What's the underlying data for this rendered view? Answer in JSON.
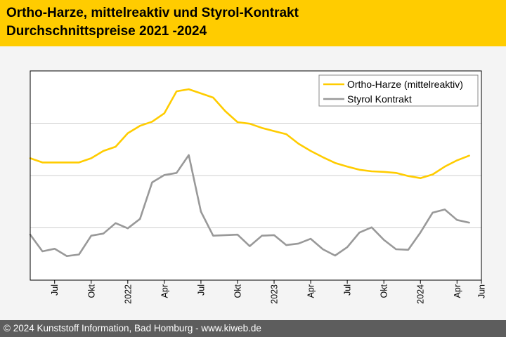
{
  "header": {
    "title": "Ortho-Harze, mittelreaktiv und Styrol-Kontrakt",
    "subtitle": "Durchschnittspreise 2021 -2024"
  },
  "footer": {
    "credit": "© 2024 Kunststoff Information, Bad Homburg - www.kiweb.de"
  },
  "chart_data": {
    "type": "line",
    "title": "Ortho-Harze, mittelreaktiv und Styrol-Kontrakt",
    "subtitle": "Durchschnittspreise 2021 -2024",
    "x_start": "2021-05",
    "x_end": "2024-06",
    "x_ticks": [
      {
        "date": "2021-07",
        "label": "Jul"
      },
      {
        "date": "2021-10",
        "label": "Okt"
      },
      {
        "date": "2022-01",
        "label": "2022"
      },
      {
        "date": "2022-04",
        "label": "Apr"
      },
      {
        "date": "2022-07",
        "label": "Jul"
      },
      {
        "date": "2022-10",
        "label": "Okt"
      },
      {
        "date": "2023-01",
        "label": "2023"
      },
      {
        "date": "2023-04",
        "label": "Apr"
      },
      {
        "date": "2023-07",
        "label": "Jul"
      },
      {
        "date": "2023-10",
        "label": "Okt"
      },
      {
        "date": "2024-01",
        "label": "2024"
      },
      {
        "date": "2024-04",
        "label": "Apr"
      },
      {
        "date": "2024-06",
        "label": "Jun"
      }
    ],
    "ylim": [
      0,
      4
    ],
    "y_gridlines": [
      1,
      2,
      3
    ],
    "y_tick_labels_shown": false,
    "grid": true,
    "legend_position": "top-right",
    "series": [
      {
        "name": "Ortho-Harze (mittelreaktiv)",
        "color": "#ffcc00",
        "points": [
          {
            "x": "2021-05",
            "y": 2.33
          },
          {
            "x": "2021-06",
            "y": 2.25
          },
          {
            "x": "2021-07",
            "y": 2.25
          },
          {
            "x": "2021-08",
            "y": 2.25
          },
          {
            "x": "2021-09",
            "y": 2.25
          },
          {
            "x": "2021-10",
            "y": 2.33
          },
          {
            "x": "2021-11",
            "y": 2.47
          },
          {
            "x": "2021-12",
            "y": 2.55
          },
          {
            "x": "2022-01",
            "y": 2.81
          },
          {
            "x": "2022-02",
            "y": 2.95
          },
          {
            "x": "2022-03",
            "y": 3.03
          },
          {
            "x": "2022-04",
            "y": 3.19
          },
          {
            "x": "2022-05",
            "y": 3.61
          },
          {
            "x": "2022-06",
            "y": 3.65
          },
          {
            "x": "2022-07",
            "y": 3.57
          },
          {
            "x": "2022-08",
            "y": 3.49
          },
          {
            "x": "2022-09",
            "y": 3.23
          },
          {
            "x": "2022-10",
            "y": 3.02
          },
          {
            "x": "2022-11",
            "y": 2.99
          },
          {
            "x": "2022-12",
            "y": 2.91
          },
          {
            "x": "2023-01",
            "y": 2.85
          },
          {
            "x": "2023-02",
            "y": 2.79
          },
          {
            "x": "2023-03",
            "y": 2.61
          },
          {
            "x": "2023-04",
            "y": 2.47
          },
          {
            "x": "2023-05",
            "y": 2.35
          },
          {
            "x": "2023-06",
            "y": 2.24
          },
          {
            "x": "2023-07",
            "y": 2.17
          },
          {
            "x": "2023-08",
            "y": 2.11
          },
          {
            "x": "2023-09",
            "y": 2.08
          },
          {
            "x": "2023-10",
            "y": 2.07
          },
          {
            "x": "2023-11",
            "y": 2.05
          },
          {
            "x": "2023-12",
            "y": 1.99
          },
          {
            "x": "2024-01",
            "y": 1.95
          },
          {
            "x": "2024-02",
            "y": 2.02
          },
          {
            "x": "2024-03",
            "y": 2.17
          },
          {
            "x": "2024-04",
            "y": 2.29
          },
          {
            "x": "2024-05",
            "y": 2.38
          }
        ]
      },
      {
        "name": "Styrol Kontrakt",
        "color": "#999999",
        "points": [
          {
            "x": "2021-05",
            "y": 0.87
          },
          {
            "x": "2021-06",
            "y": 0.55
          },
          {
            "x": "2021-07",
            "y": 0.6
          },
          {
            "x": "2021-08",
            "y": 0.46
          },
          {
            "x": "2021-09",
            "y": 0.49
          },
          {
            "x": "2021-10",
            "y": 0.85
          },
          {
            "x": "2021-11",
            "y": 0.89
          },
          {
            "x": "2021-12",
            "y": 1.09
          },
          {
            "x": "2022-01",
            "y": 0.99
          },
          {
            "x": "2022-02",
            "y": 1.17
          },
          {
            "x": "2022-03",
            "y": 1.87
          },
          {
            "x": "2022-04",
            "y": 2.01
          },
          {
            "x": "2022-05",
            "y": 2.05
          },
          {
            "x": "2022-06",
            "y": 2.39
          },
          {
            "x": "2022-07",
            "y": 1.31
          },
          {
            "x": "2022-08",
            "y": 0.85
          },
          {
            "x": "2022-09",
            "y": 0.86
          },
          {
            "x": "2022-10",
            "y": 0.87
          },
          {
            "x": "2022-11",
            "y": 0.65
          },
          {
            "x": "2022-12",
            "y": 0.85
          },
          {
            "x": "2023-01",
            "y": 0.86
          },
          {
            "x": "2023-02",
            "y": 0.67
          },
          {
            "x": "2023-03",
            "y": 0.7
          },
          {
            "x": "2023-04",
            "y": 0.79
          },
          {
            "x": "2023-05",
            "y": 0.59
          },
          {
            "x": "2023-06",
            "y": 0.47
          },
          {
            "x": "2023-07",
            "y": 0.63
          },
          {
            "x": "2023-08",
            "y": 0.91
          },
          {
            "x": "2023-09",
            "y": 1.01
          },
          {
            "x": "2023-10",
            "y": 0.77
          },
          {
            "x": "2023-11",
            "y": 0.59
          },
          {
            "x": "2023-12",
            "y": 0.58
          },
          {
            "x": "2024-01",
            "y": 0.91
          },
          {
            "x": "2024-02",
            "y": 1.29
          },
          {
            "x": "2024-03",
            "y": 1.35
          },
          {
            "x": "2024-04",
            "y": 1.15
          },
          {
            "x": "2024-05",
            "y": 1.1
          }
        ]
      }
    ]
  }
}
